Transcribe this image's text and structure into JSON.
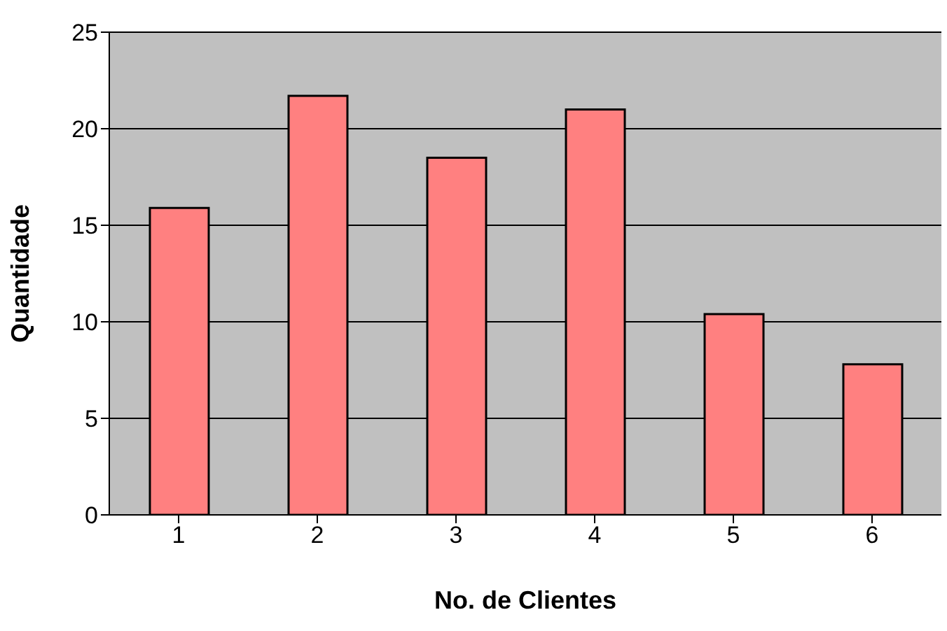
{
  "chart_data": {
    "type": "bar",
    "xlabel": "No. de Clientes",
    "ylabel": "Quantidade",
    "categories": [
      "1",
      "2",
      "3",
      "4",
      "5",
      "6"
    ],
    "values": [
      15.9,
      21.7,
      18.5,
      21.0,
      10.4,
      7.8
    ],
    "color": "#ff8080",
    "ylim": [
      0,
      25
    ],
    "yticks": [
      0,
      5,
      10,
      15,
      20,
      25
    ],
    "grid": "y"
  }
}
